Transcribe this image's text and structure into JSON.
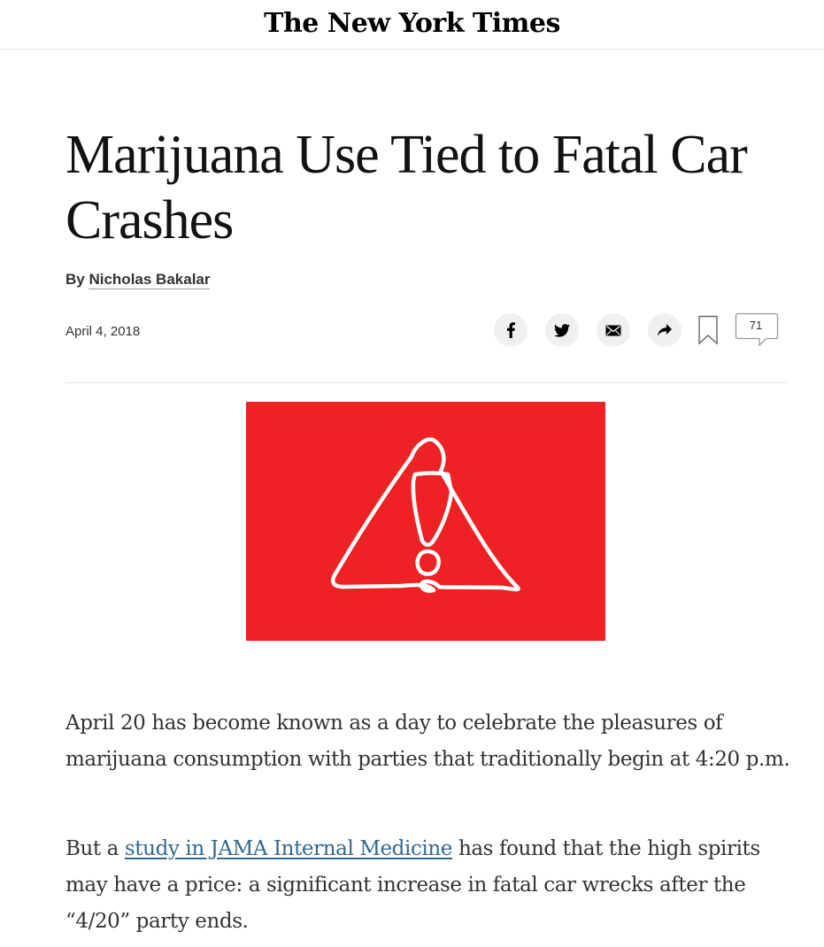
{
  "masthead": {
    "logo_text": "The New York Times"
  },
  "article": {
    "headline": "Marijuana Use Tied to Fatal Car Crashes",
    "byline": {
      "prefix": "By",
      "author": "Nicholas Bakalar"
    },
    "date": "April 4, 2018",
    "share": {
      "buttons": [
        "facebook-icon",
        "twitter-icon",
        "email-icon",
        "share-icon"
      ],
      "save_icon": "bookmark-icon",
      "comment_count": "71"
    },
    "lead_image": {
      "background": "#ee2124",
      "icon": "warning-triangle-icon",
      "stroke": "#ffffff"
    },
    "paragraphs": [
      {
        "text": "April 20 has become known as a day to celebrate the pleasures of marijuana consumption with parties that traditionally begin at 4:20 p.m."
      },
      {
        "before_link": "But a ",
        "link_text": "study in JAMA Internal Medicine",
        "after_link": " has found that the high spirits may have a price: a significant increase in fatal car wrecks after the “4/20” party ends."
      }
    ]
  },
  "colors": {
    "link": "#326891",
    "text": "#333333",
    "rule": "#e2e2e2"
  }
}
